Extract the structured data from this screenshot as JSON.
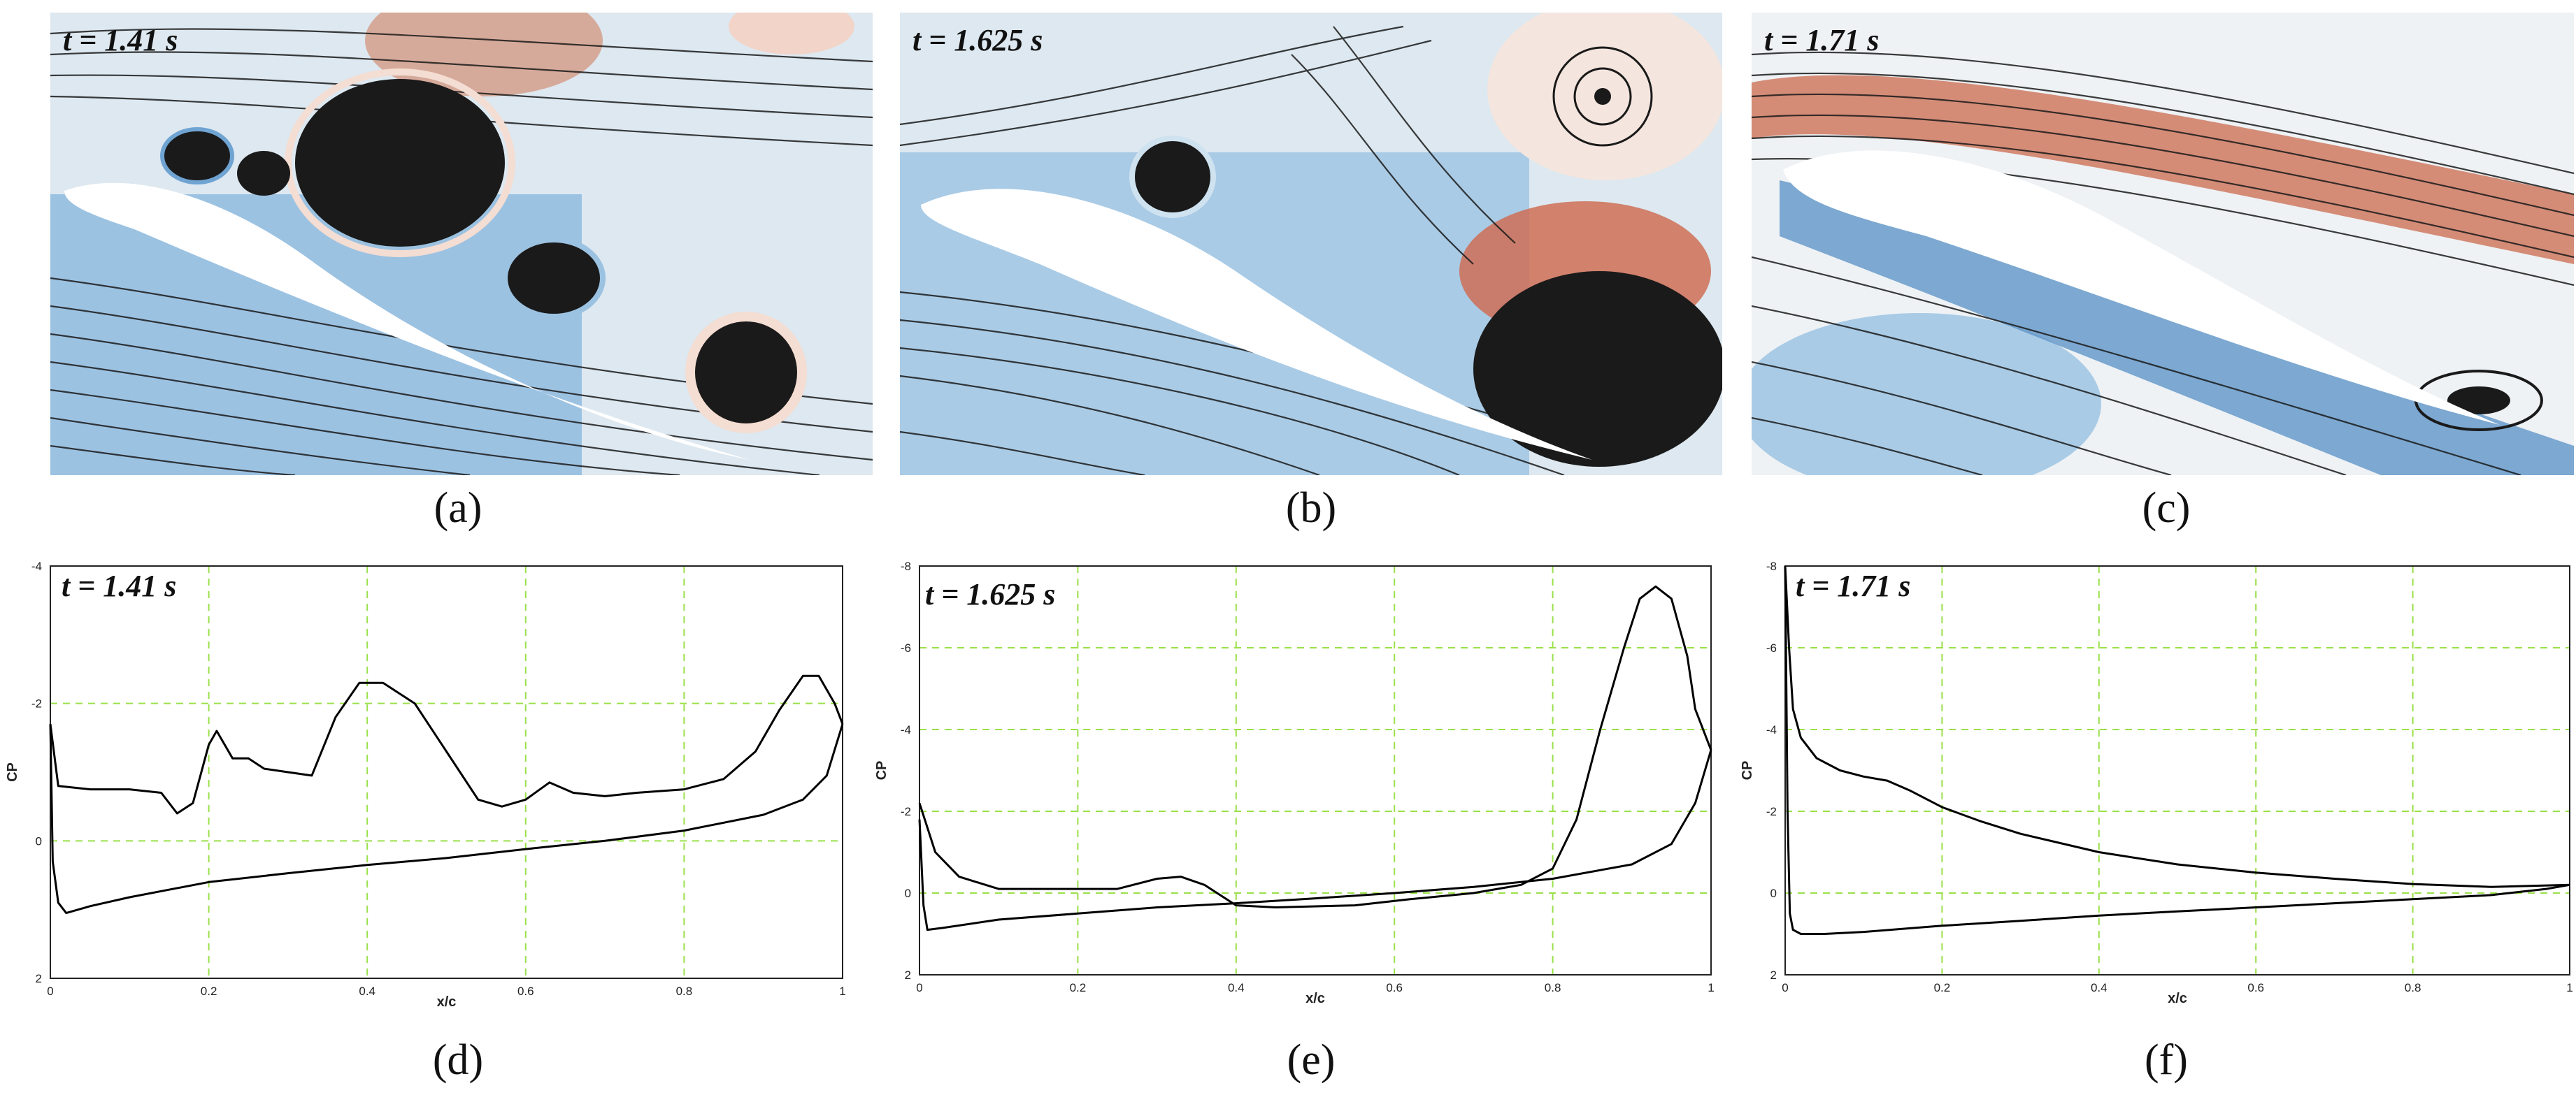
{
  "flow_panels": [
    {
      "label": "(a)",
      "time": "t = 1.41 s"
    },
    {
      "label": "(b)",
      "time": "t = 1.625 s"
    },
    {
      "label": "(c)",
      "time": "t = 1.71 s"
    }
  ],
  "cp_panels": [
    {
      "label": "(d)",
      "time": "t = 1.41 s"
    },
    {
      "label": "(e)",
      "time": "t = 1.625 s"
    },
    {
      "label": "(f)",
      "time": "t = 1.71 s"
    }
  ],
  "colors": {
    "grid": "#9be04a",
    "curve": "#000000",
    "suction": "#2f6fb3",
    "pressure": "#c8573a"
  },
  "chart_data": [
    {
      "type": "line",
      "title": "t = 1.41 s",
      "xlabel": "x/c",
      "ylabel": "CP",
      "xlim": [
        0,
        1
      ],
      "ylim": [
        2,
        -4
      ],
      "x_ticks": [
        "0",
        "0.2",
        "0.4",
        "0.6",
        "0.8",
        "1"
      ],
      "y_ticks": [
        "-4",
        "-2",
        "0",
        "2"
      ],
      "grid": true,
      "series": [
        {
          "values": [
            [
              0,
              -1.7
            ],
            [
              0.01,
              -0.8
            ],
            [
              0.05,
              -0.75
            ],
            [
              0.1,
              -0.75
            ],
            [
              0.14,
              -0.7
            ],
            [
              0.16,
              -0.4
            ],
            [
              0.18,
              -0.55
            ],
            [
              0.2,
              -1.4
            ],
            [
              0.21,
              -1.6
            ],
            [
              0.23,
              -1.2
            ],
            [
              0.25,
              -1.2
            ],
            [
              0.27,
              -1.05
            ],
            [
              0.3,
              -1.0
            ],
            [
              0.33,
              -0.95
            ],
            [
              0.36,
              -1.8
            ],
            [
              0.39,
              -2.3
            ],
            [
              0.42,
              -2.3
            ],
            [
              0.46,
              -2.0
            ],
            [
              0.5,
              -1.3
            ],
            [
              0.54,
              -0.6
            ],
            [
              0.57,
              -0.5
            ],
            [
              0.6,
              -0.6
            ],
            [
              0.63,
              -0.85
            ],
            [
              0.66,
              -0.7
            ],
            [
              0.7,
              -0.65
            ],
            [
              0.74,
              -0.7
            ],
            [
              0.8,
              -0.75
            ],
            [
              0.85,
              -0.9
            ],
            [
              0.89,
              -1.3
            ],
            [
              0.92,
              -1.9
            ],
            [
              0.95,
              -2.4
            ],
            [
              0.97,
              -2.4
            ],
            [
              0.99,
              -2.0
            ],
            [
              1.0,
              -1.7
            ]
          ]
        },
        {
          "values": [
            [
              0,
              -1.7
            ],
            [
              0.003,
              0.3
            ],
            [
              0.01,
              0.9
            ],
            [
              0.02,
              1.05
            ],
            [
              0.05,
              0.95
            ],
            [
              0.1,
              0.82
            ],
            [
              0.2,
              0.6
            ],
            [
              0.3,
              0.47
            ],
            [
              0.4,
              0.35
            ],
            [
              0.5,
              0.25
            ],
            [
              0.6,
              0.12
            ],
            [
              0.7,
              0.0
            ],
            [
              0.8,
              -0.15
            ],
            [
              0.9,
              -0.38
            ],
            [
              0.95,
              -0.6
            ],
            [
              0.98,
              -0.95
            ],
            [
              1.0,
              -1.7
            ]
          ]
        }
      ]
    },
    {
      "type": "line",
      "title": "t = 1.625 s",
      "xlabel": "x/c",
      "ylabel": "CP",
      "xlim": [
        0,
        1
      ],
      "ylim": [
        2,
        -8
      ],
      "x_ticks": [
        "0",
        "0.2",
        "0.4",
        "0.6",
        "0.8",
        "1"
      ],
      "y_ticks": [
        "-8",
        "-6",
        "-4",
        "-2",
        "0",
        "2"
      ],
      "grid": true,
      "series": [
        {
          "values": [
            [
              0,
              -2.2
            ],
            [
              0.02,
              -1.0
            ],
            [
              0.05,
              -0.4
            ],
            [
              0.1,
              -0.1
            ],
            [
              0.2,
              -0.1
            ],
            [
              0.25,
              -0.1
            ],
            [
              0.3,
              -0.35
            ],
            [
              0.33,
              -0.4
            ],
            [
              0.36,
              -0.2
            ],
            [
              0.4,
              0.3
            ],
            [
              0.45,
              0.35
            ],
            [
              0.55,
              0.3
            ],
            [
              0.62,
              0.15
            ],
            [
              0.7,
              0.0
            ],
            [
              0.76,
              -0.2
            ],
            [
              0.8,
              -0.6
            ],
            [
              0.83,
              -1.8
            ],
            [
              0.86,
              -4.0
            ],
            [
              0.89,
              -6.0
            ],
            [
              0.91,
              -7.2
            ],
            [
              0.93,
              -7.5
            ],
            [
              0.95,
              -7.2
            ],
            [
              0.97,
              -5.8
            ],
            [
              0.98,
              -4.5
            ],
            [
              1.0,
              -3.5
            ]
          ]
        },
        {
          "values": [
            [
              0,
              -1.8
            ],
            [
              0.005,
              0.3
            ],
            [
              0.01,
              0.9
            ],
            [
              0.03,
              0.85
            ],
            [
              0.1,
              0.65
            ],
            [
              0.2,
              0.5
            ],
            [
              0.3,
              0.35
            ],
            [
              0.4,
              0.25
            ],
            [
              0.5,
              0.13
            ],
            [
              0.6,
              0.0
            ],
            [
              0.7,
              -0.15
            ],
            [
              0.8,
              -0.35
            ],
            [
              0.9,
              -0.7
            ],
            [
              0.95,
              -1.2
            ],
            [
              0.98,
              -2.2
            ],
            [
              1.0,
              -3.5
            ]
          ]
        }
      ]
    },
    {
      "type": "line",
      "title": "t = 1.71 s",
      "xlabel": "x/c",
      "ylabel": "CP",
      "xlim": [
        0,
        1
      ],
      "ylim": [
        2,
        -8
      ],
      "x_ticks": [
        "0",
        "0.2",
        "0.4",
        "0.6",
        "0.8",
        "1"
      ],
      "y_ticks": [
        "-8",
        "-6",
        "-4",
        "-2",
        "0",
        "2"
      ],
      "grid": true,
      "series": [
        {
          "values": [
            [
              0,
              -8.0
            ],
            [
              0.005,
              -6.0
            ],
            [
              0.01,
              -4.5
            ],
            [
              0.02,
              -3.8
            ],
            [
              0.04,
              -3.3
            ],
            [
              0.07,
              -3.0
            ],
            [
              0.1,
              -2.85
            ],
            [
              0.13,
              -2.75
            ],
            [
              0.16,
              -2.5
            ],
            [
              0.2,
              -2.1
            ],
            [
              0.25,
              -1.75
            ],
            [
              0.3,
              -1.45
            ],
            [
              0.4,
              -1.0
            ],
            [
              0.5,
              -0.7
            ],
            [
              0.6,
              -0.5
            ],
            [
              0.7,
              -0.35
            ],
            [
              0.8,
              -0.22
            ],
            [
              0.9,
              -0.15
            ],
            [
              1.0,
              -0.2
            ]
          ]
        },
        {
          "values": [
            [
              0,
              -8.0
            ],
            [
              0.003,
              -2.0
            ],
            [
              0.006,
              0.5
            ],
            [
              0.01,
              0.9
            ],
            [
              0.02,
              1.0
            ],
            [
              0.05,
              1.0
            ],
            [
              0.1,
              0.95
            ],
            [
              0.2,
              0.8
            ],
            [
              0.3,
              0.68
            ],
            [
              0.4,
              0.55
            ],
            [
              0.5,
              0.45
            ],
            [
              0.6,
              0.35
            ],
            [
              0.7,
              0.25
            ],
            [
              0.8,
              0.15
            ],
            [
              0.9,
              0.05
            ],
            [
              0.97,
              -0.1
            ],
            [
              1.0,
              -0.2
            ]
          ]
        }
      ]
    }
  ]
}
